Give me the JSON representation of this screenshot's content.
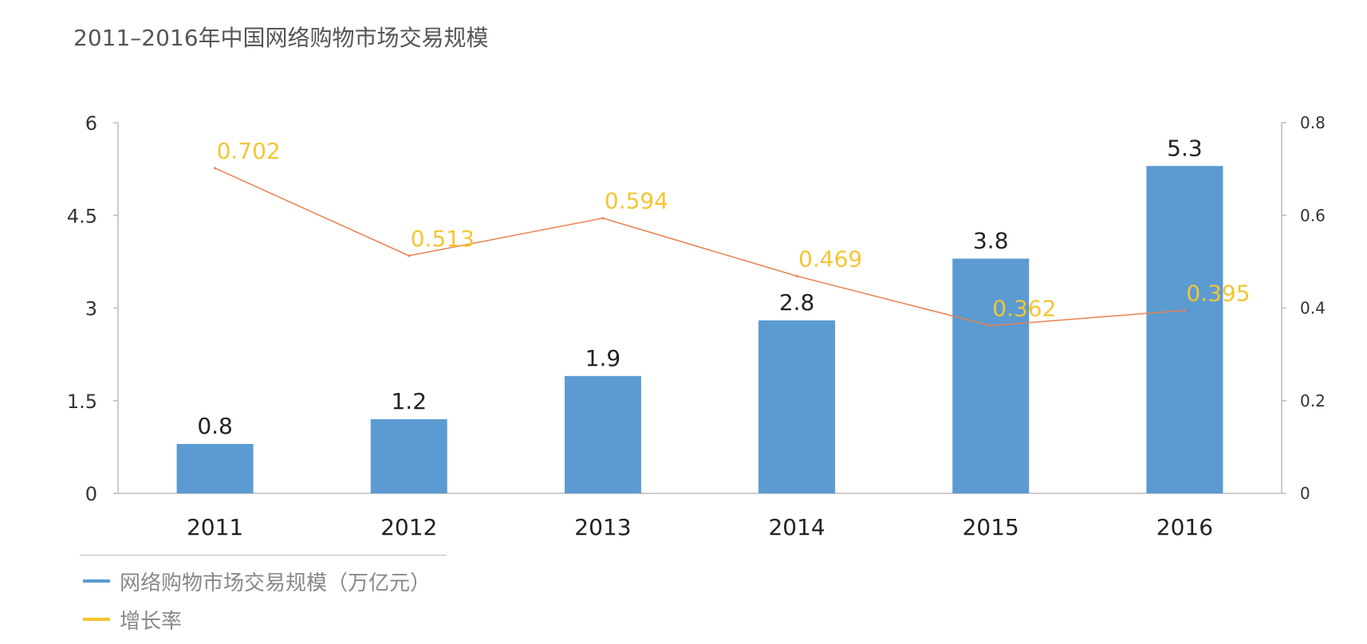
{
  "title": "2011–2016年中国网络购物市场交易规模",
  "colors": {
    "bar": "#5B9BD1",
    "line": "#E8814F",
    "rate_label": "#F5C533",
    "axis": "#bbbbbb",
    "text": "#222222"
  },
  "legend": [
    {
      "label": "网络购物市场交易规模（万亿元）",
      "color": "#5B9BD1"
    },
    {
      "label": "增长率",
      "color": "#F5C533"
    }
  ],
  "chart_data": {
    "type": "bar",
    "categories": [
      "2011",
      "2012",
      "2013",
      "2014",
      "2015",
      "2016"
    ],
    "series": [
      {
        "name": "网络购物市场交易规模（万亿元）",
        "type": "bar",
        "axis": "left",
        "values": [
          0.8,
          1.2,
          1.9,
          2.8,
          3.8,
          5.3
        ],
        "labels": [
          "0.8",
          "1.2",
          "1.9",
          "2.8",
          "3.8",
          "5.3"
        ]
      },
      {
        "name": "增长率",
        "type": "line",
        "axis": "right",
        "values": [
          0.702,
          0.513,
          0.594,
          0.469,
          0.362,
          0.395
        ],
        "labels": [
          "0.702",
          "0.513",
          "0.594",
          "0.469",
          "0.362",
          "0.395"
        ]
      }
    ],
    "y_left": {
      "min": 0,
      "max": 6,
      "ticks": [
        "0",
        "1.5",
        "3",
        "4.5",
        "6"
      ]
    },
    "y_right": {
      "min": 0,
      "max": 0.8,
      "ticks": [
        "0",
        "0.2",
        "0.4",
        "0.6",
        "0.8"
      ]
    },
    "grid": false,
    "legend_position": "bottom-left"
  }
}
